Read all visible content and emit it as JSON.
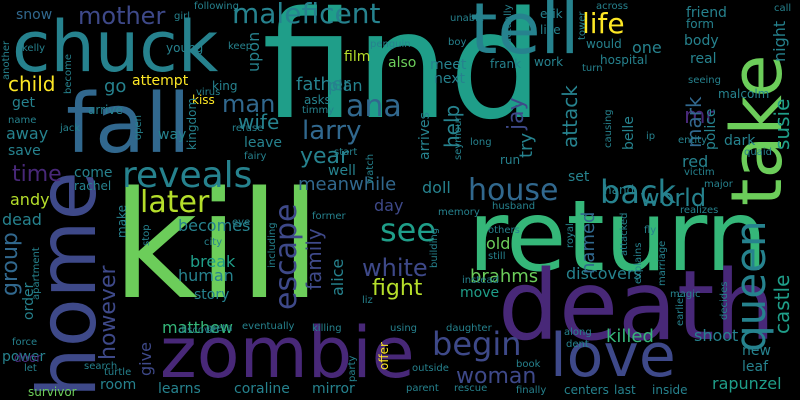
{
  "palette": {
    "background": "#000000",
    "green": "#6ccd5a",
    "lime": "#b5de2b",
    "teal": "#1f9e89",
    "teal2": "#26828e",
    "blue": "#31688e",
    "indigo": "#3e4989",
    "purple": "#482878",
    "dark": "#440154",
    "yellow": "#fde725",
    "mint": "#35b779"
  },
  "words": {
    "find": "find",
    "kill": "kill",
    "return": "return",
    "death": "death",
    "zombie": "zombie",
    "home": "home",
    "fall": "fall",
    "chuck": "chuck",
    "tell": "tell",
    "take": "take",
    "love": "love",
    "queen": "queen",
    "reveals": "reveals",
    "later": "later",
    "house": "house",
    "back": "back",
    "begin": "begin",
    "escape": "escape",
    "see": "see",
    "white": "white",
    "maleficent": "maleficent",
    "mother": "mother",
    "life": "life",
    "ana": "ana",
    "larry": "larry",
    "man": "man",
    "wife": "wife",
    "year": "year",
    "time": "time",
    "child": "child",
    "group": "group",
    "however": "however",
    "world": "world",
    "castle": "castle",
    "susie": "susie",
    "mr": "mr",
    "mark": "mark",
    "attack": "attack",
    "help": "help",
    "jay": "jay",
    "try": "try",
    "fight": "fight",
    "family": "family",
    "alice": "alice",
    "brahms": "brahms",
    "discovers": "discovers",
    "named": "named",
    "woman": "woman",
    "killed": "killed",
    "shoot": "shoot",
    "new": "new",
    "leaf": "leaf",
    "rapunzel": "rapunzel",
    "matthew": "matthew",
    "learns": "learns",
    "coraline": "coraline",
    "mirror": "mirror",
    "give": "give",
    "room": "room",
    "power": "power",
    "survivor": "survivor",
    "meanwhile": "meanwhile",
    "doll": "doll",
    "well": "well",
    "andy": "andy",
    "dead": "dead",
    "human": "human",
    "story": "story",
    "break": "break",
    "becomes": "becomes",
    "day": "day",
    "old": "old",
    "move": "move",
    "father": "father",
    "film": "film",
    "plan": "plan",
    "also": "also",
    "meet": "meet",
    "next": "next",
    "arrives": "arrives",
    "go": "go",
    "attempt": "attempt",
    "get": "get",
    "away": "away",
    "save": "save",
    "leave": "leave",
    "way": "way",
    "come": "come",
    "rachel": "rachel",
    "snow": "snow",
    "friend": "friend",
    "one": "one",
    "body": "body",
    "real": "real",
    "police": "police",
    "belle": "belle",
    "red": "red",
    "dark": "dark",
    "hand": "hand",
    "set": "set",
    "order": "order",
    "make": "make",
    "upon": "upon",
    "frank": "frank",
    "work": "work",
    "hospital": "hospital",
    "erik": "erik",
    "like": "like",
    "would": "would",
    "form": "form",
    "night": "night",
    "call": "call",
    "malcolm": "malcolm",
    "young": "young",
    "kiss": "kiss",
    "king": "king",
    "kingdom": "kingdom",
    "refuse": "refuse",
    "fairy": "fairy",
    "asks": "asks",
    "timmy": "timmy",
    "start": "start",
    "run": "run",
    "long": "long",
    "seymour": "seymour",
    "girl": "girl",
    "following": "following",
    "unable": "unable",
    "actually": "actually",
    "boy": "boy",
    "penguin": "penguin",
    "keep": "keep",
    "virus": "virus",
    "another": "another",
    "kelly": "kelly",
    "name": "name",
    "jack": "jack",
    "arrive": "arrive",
    "open": "open",
    "force": "force",
    "door": "door",
    "let": "let",
    "search": "search",
    "turtle": "turtle",
    "discover": "discover",
    "eventually": "eventually",
    "killing": "killing",
    "using": "using",
    "daughter": "daughter",
    "offer": "offer",
    "party": "party",
    "outside": "outside",
    "parent": "parent",
    "rescue": "rescue",
    "finally": "finally",
    "centers": "centers",
    "last": "last",
    "inside": "inside",
    "book": "book",
    "dent": "dent",
    "along": "along",
    "liz": "liz",
    "greta": "greta",
    "stop": "stop",
    "city": "city",
    "eye": "eye",
    "memory": "memory",
    "husband": "husband",
    "former": "former",
    "including": "including",
    "building": "building",
    "instead": "instead",
    "others": "others",
    "still": "still",
    "royal": "royal",
    "attacked": "attacked",
    "explains": "explains",
    "marriage": "marriage",
    "earlier": "earlier",
    "decides": "decides",
    "magic": "magic",
    "realizes": "realizes",
    "fly": "fly",
    "entity": "entity",
    "victim": "victim",
    "major": "major",
    "quaid": "quaid",
    "across": "across",
    "seeing": "seeing",
    "tower": "tower",
    "turn": "turn",
    "causing": "causing",
    "watch": "watch",
    "ip": "ip",
    "become": "become",
    "apartment": "apartment",
    "matter": "matter"
  }
}
